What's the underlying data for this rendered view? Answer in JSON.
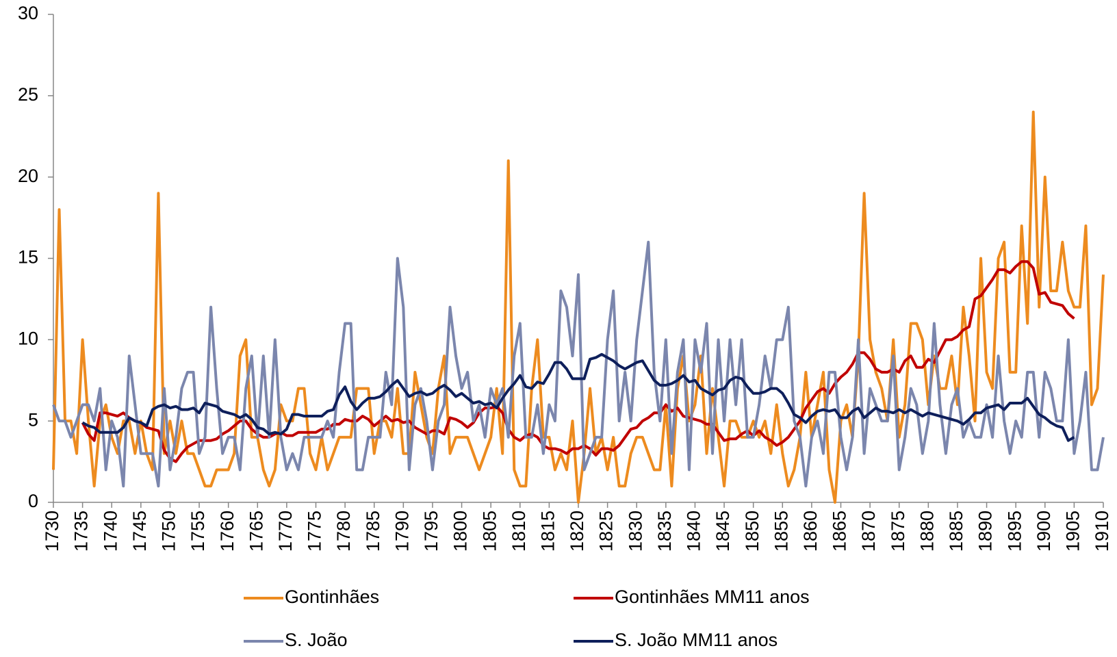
{
  "chart_data": {
    "type": "line",
    "x": [
      1730,
      1731,
      1732,
      1733,
      1734,
      1735,
      1736,
      1737,
      1738,
      1739,
      1740,
      1741,
      1742,
      1743,
      1744,
      1745,
      1746,
      1747,
      1748,
      1749,
      1750,
      1751,
      1752,
      1753,
      1754,
      1755,
      1756,
      1757,
      1758,
      1759,
      1760,
      1761,
      1762,
      1763,
      1764,
      1765,
      1766,
      1767,
      1768,
      1769,
      1770,
      1771,
      1772,
      1773,
      1774,
      1775,
      1776,
      1777,
      1778,
      1779,
      1780,
      1781,
      1782,
      1783,
      1784,
      1785,
      1786,
      1787,
      1788,
      1789,
      1790,
      1791,
      1792,
      1793,
      1794,
      1795,
      1796,
      1797,
      1798,
      1799,
      1800,
      1801,
      1802,
      1803,
      1804,
      1805,
      1806,
      1807,
      1808,
      1809,
      1810,
      1811,
      1812,
      1813,
      1814,
      1815,
      1816,
      1817,
      1818,
      1819,
      1820,
      1821,
      1822,
      1823,
      1824,
      1825,
      1826,
      1827,
      1828,
      1829,
      1830,
      1831,
      1832,
      1833,
      1834,
      1835,
      1836,
      1837,
      1838,
      1839,
      1840,
      1841,
      1842,
      1843,
      1844,
      1845,
      1846,
      1847,
      1848,
      1849,
      1850,
      1851,
      1852,
      1853,
      1854,
      1855,
      1856,
      1857,
      1858,
      1859,
      1860,
      1861,
      1862,
      1863,
      1864,
      1865,
      1866,
      1867,
      1868,
      1869,
      1870,
      1871,
      1872,
      1873,
      1874,
      1875,
      1876,
      1877,
      1878,
      1879,
      1880,
      1881,
      1882,
      1883,
      1884,
      1885,
      1886,
      1887,
      1888,
      1889,
      1890,
      1891,
      1892,
      1893,
      1894,
      1895,
      1896,
      1897,
      1898,
      1899,
      1900,
      1901,
      1902,
      1903,
      1904,
      1905,
      1906,
      1907,
      1908,
      1909,
      1910
    ],
    "series": [
      {
        "name": "Gontinhães",
        "color": "#ed8b1f",
        "values": [
          2,
          18,
          5,
          5,
          3,
          10,
          5,
          1,
          5,
          6,
          4,
          3,
          5,
          5,
          3,
          5,
          3,
          2,
          19,
          3,
          5,
          3,
          5,
          3,
          3,
          2,
          1,
          1,
          2,
          2,
          2,
          3,
          9,
          10,
          4,
          4,
          2,
          1,
          2,
          6,
          5,
          5,
          7,
          7,
          3,
          2,
          4,
          2,
          3,
          4,
          4,
          4,
          7,
          7,
          7,
          3,
          5,
          5,
          4,
          7,
          3,
          3,
          8,
          6,
          4,
          3,
          7,
          9,
          3,
          4,
          4,
          4,
          3,
          2,
          3,
          4,
          7,
          3,
          21,
          2,
          1,
          1,
          7,
          10,
          4,
          4,
          2,
          3,
          2,
          5,
          0,
          3,
          7,
          3,
          4,
          2,
          4,
          1,
          1,
          3,
          4,
          4,
          3,
          2,
          2,
          6,
          1,
          7,
          9,
          5,
          6,
          9,
          3,
          7,
          4,
          1,
          5,
          5,
          4,
          4,
          5,
          4,
          5,
          3,
          6,
          3,
          1,
          2,
          4,
          8,
          4,
          6,
          8,
          2,
          0,
          5,
          6,
          4,
          9,
          19,
          10,
          8,
          7,
          5,
          10,
          4,
          6,
          11,
          11,
          10,
          6,
          9,
          7,
          7,
          9,
          6,
          12,
          9,
          5,
          15,
          8,
          7,
          15,
          16,
          8,
          8,
          17,
          11,
          24,
          12,
          20,
          13,
          13,
          16,
          13,
          12,
          12,
          17,
          6,
          7,
          14
        ]
      },
      {
        "name": "Gontinhães MM11 anos",
        "color": "#c00000",
        "values": [
          null,
          null,
          null,
          null,
          null,
          4.9,
          4.2,
          3.8,
          5.5,
          5.5,
          5.4,
          5.3,
          5.5,
          5.2,
          5.0,
          4.9,
          4.6,
          4.5,
          4.4,
          3.2,
          2.7,
          2.5,
          3.0,
          3.4,
          3.6,
          3.8,
          3.8,
          3.8,
          3.9,
          4.2,
          4.4,
          4.7,
          5.0,
          5.0,
          4.5,
          4.2,
          4.0,
          4.0,
          4.2,
          4.3,
          4.1,
          4.1,
          4.3,
          4.3,
          4.3,
          4.3,
          4.5,
          4.5,
          4.8,
          4.8,
          5.1,
          5.0,
          5.0,
          5.3,
          5.1,
          4.7,
          5.0,
          5.3,
          5.0,
          5.1,
          4.9,
          5.0,
          4.6,
          4.4,
          4.2,
          4.4,
          4.4,
          4.2,
          5.2,
          5.1,
          4.9,
          4.6,
          4.9,
          5.5,
          5.8,
          5.8,
          5.9,
          5.5,
          4.5,
          4.0,
          3.8,
          4.1,
          4.2,
          4.0,
          3.5,
          3.3,
          3.3,
          3.2,
          3.0,
          3.3,
          3.3,
          3.5,
          3.3,
          2.9,
          3.3,
          3.3,
          3.2,
          3.5,
          4.0,
          4.5,
          4.6,
          5.0,
          5.2,
          5.5,
          5.5,
          6.0,
          5.6,
          5.8,
          5.3,
          5.2,
          5.1,
          5.0,
          4.8,
          4.8,
          4.3,
          3.8,
          3.9,
          3.9,
          4.2,
          4.4,
          4.1,
          4.4,
          4.0,
          3.8,
          3.5,
          3.7,
          4.0,
          4.5,
          5.0,
          5.8,
          6.3,
          6.8,
          7.0,
          6.7,
          7.3,
          7.7,
          8.0,
          8.5,
          9.2,
          9.2,
          8.8,
          8.2,
          8.0,
          8.0,
          8.2,
          8.0,
          8.7,
          9.0,
          8.3,
          8.3,
          8.8,
          8.6,
          9.3,
          10.0,
          10.0,
          10.2,
          10.6,
          10.8,
          12.5,
          12.7,
          13.2,
          13.7,
          14.3,
          14.3,
          14.1,
          14.5,
          14.8,
          14.8,
          14.4,
          12.8,
          12.9,
          12.3,
          12.2,
          12.1,
          11.6,
          11.3,
          null,
          null,
          null,
          null,
          null
        ]
      },
      {
        "name": "S. João",
        "color": "#7b86ad",
        "values": [
          6,
          5,
          5,
          4,
          5,
          6,
          6,
          5,
          7,
          2,
          5,
          4,
          1,
          9,
          6,
          3,
          3,
          3,
          1,
          7,
          2,
          4,
          7,
          8,
          8,
          3,
          4,
          12,
          7,
          3,
          4,
          4,
          2,
          7,
          9,
          4,
          9,
          4,
          10,
          4,
          2,
          3,
          2,
          4,
          4,
          4,
          4,
          5,
          4,
          8,
          11,
          11,
          2,
          2,
          4,
          4,
          4,
          8,
          6,
          15,
          12,
          2,
          6,
          7,
          5,
          2,
          5,
          6,
          12,
          9,
          7,
          8,
          5,
          6,
          4,
          7,
          6,
          7,
          4,
          9,
          11,
          4,
          4,
          6,
          3,
          6,
          5,
          13,
          12,
          9,
          14,
          2,
          3,
          4,
          4,
          10,
          13,
          5,
          8,
          5,
          10,
          13,
          16,
          8,
          5,
          10,
          3,
          8,
          10,
          2,
          10,
          8,
          11,
          3,
          10,
          5,
          10,
          6,
          10,
          4,
          4,
          6,
          9,
          7,
          10,
          10,
          12,
          5,
          4,
          1,
          4,
          5,
          3,
          8,
          8,
          4,
          2,
          4,
          10,
          3,
          7,
          6,
          5,
          5,
          9,
          2,
          4,
          7,
          6,
          3,
          5,
          11,
          6,
          3,
          6,
          7,
          4,
          5,
          4,
          4,
          6,
          4,
          9,
          5,
          3,
          5,
          4,
          8,
          8,
          4,
          8,
          7,
          5,
          5,
          10,
          3,
          5,
          8,
          2,
          2,
          4
        ]
      },
      {
        "name": "S. João MM11 anos",
        "color": "#0e1f5b",
        "values": [
          null,
          null,
          null,
          null,
          null,
          4.9,
          4.7,
          4.6,
          4.3,
          4.3,
          4.3,
          4.3,
          4.6,
          5.2,
          5.0,
          4.9,
          4.7,
          5.7,
          5.9,
          6.0,
          5.8,
          5.9,
          5.7,
          5.7,
          5.8,
          5.5,
          6.1,
          6.0,
          5.9,
          5.6,
          5.5,
          5.4,
          5.2,
          5.4,
          5.1,
          4.6,
          4.5,
          4.2,
          4.3,
          4.2,
          4.5,
          5.4,
          5.4,
          5.3,
          5.3,
          5.3,
          5.3,
          5.6,
          5.7,
          6.6,
          7.1,
          6.2,
          5.7,
          6.1,
          6.4,
          6.4,
          6.5,
          6.8,
          7.2,
          7.5,
          7.0,
          6.5,
          6.7,
          6.8,
          6.6,
          6.7,
          7.0,
          7.2,
          6.9,
          6.5,
          6.7,
          6.4,
          6.1,
          6.2,
          6.0,
          6.1,
          5.8,
          6.4,
          6.9,
          7.3,
          7.8,
          7.1,
          7.0,
          7.4,
          7.3,
          7.9,
          8.6,
          8.6,
          8.2,
          7.6,
          7.6,
          7.6,
          8.8,
          8.9,
          9.1,
          8.9,
          8.7,
          8.4,
          8.2,
          8.4,
          8.6,
          8.7,
          8.1,
          7.5,
          7.2,
          7.2,
          7.3,
          7.5,
          7.8,
          7.4,
          7.5,
          7.0,
          6.8,
          6.6,
          6.9,
          7.0,
          7.5,
          7.7,
          7.6,
          7.1,
          6.7,
          6.7,
          6.8,
          7.0,
          7.0,
          6.7,
          6.1,
          5.4,
          5.2,
          4.9,
          5.3,
          5.6,
          5.7,
          5.6,
          5.7,
          5.2,
          5.2,
          5.6,
          5.8,
          5.2,
          5.5,
          5.8,
          5.6,
          5.6,
          5.5,
          5.7,
          5.5,
          5.7,
          5.5,
          5.3,
          5.5,
          5.4,
          5.3,
          5.2,
          5.1,
          5.0,
          4.8,
          5.1,
          5.5,
          5.5,
          5.8,
          5.9,
          6.0,
          5.7,
          6.1,
          6.1,
          6.1,
          6.4,
          5.9,
          5.4,
          5.2,
          4.9,
          4.7,
          4.6,
          3.8,
          4.0,
          null,
          null,
          null,
          null,
          null
        ]
      }
    ],
    "xlim": [
      1730,
      1910
    ],
    "xticks": [
      1730,
      1735,
      1740,
      1745,
      1750,
      1755,
      1760,
      1765,
      1770,
      1775,
      1780,
      1785,
      1790,
      1795,
      1800,
      1805,
      1810,
      1815,
      1820,
      1825,
      1830,
      1835,
      1840,
      1845,
      1850,
      1855,
      1860,
      1865,
      1870,
      1875,
      1880,
      1885,
      1890,
      1895,
      1900,
      1905,
      1910
    ],
    "ylim": [
      0,
      30
    ],
    "yticks": [
      0,
      5,
      10,
      15,
      20,
      25,
      30
    ],
    "grid": false,
    "legend": "bottom"
  }
}
